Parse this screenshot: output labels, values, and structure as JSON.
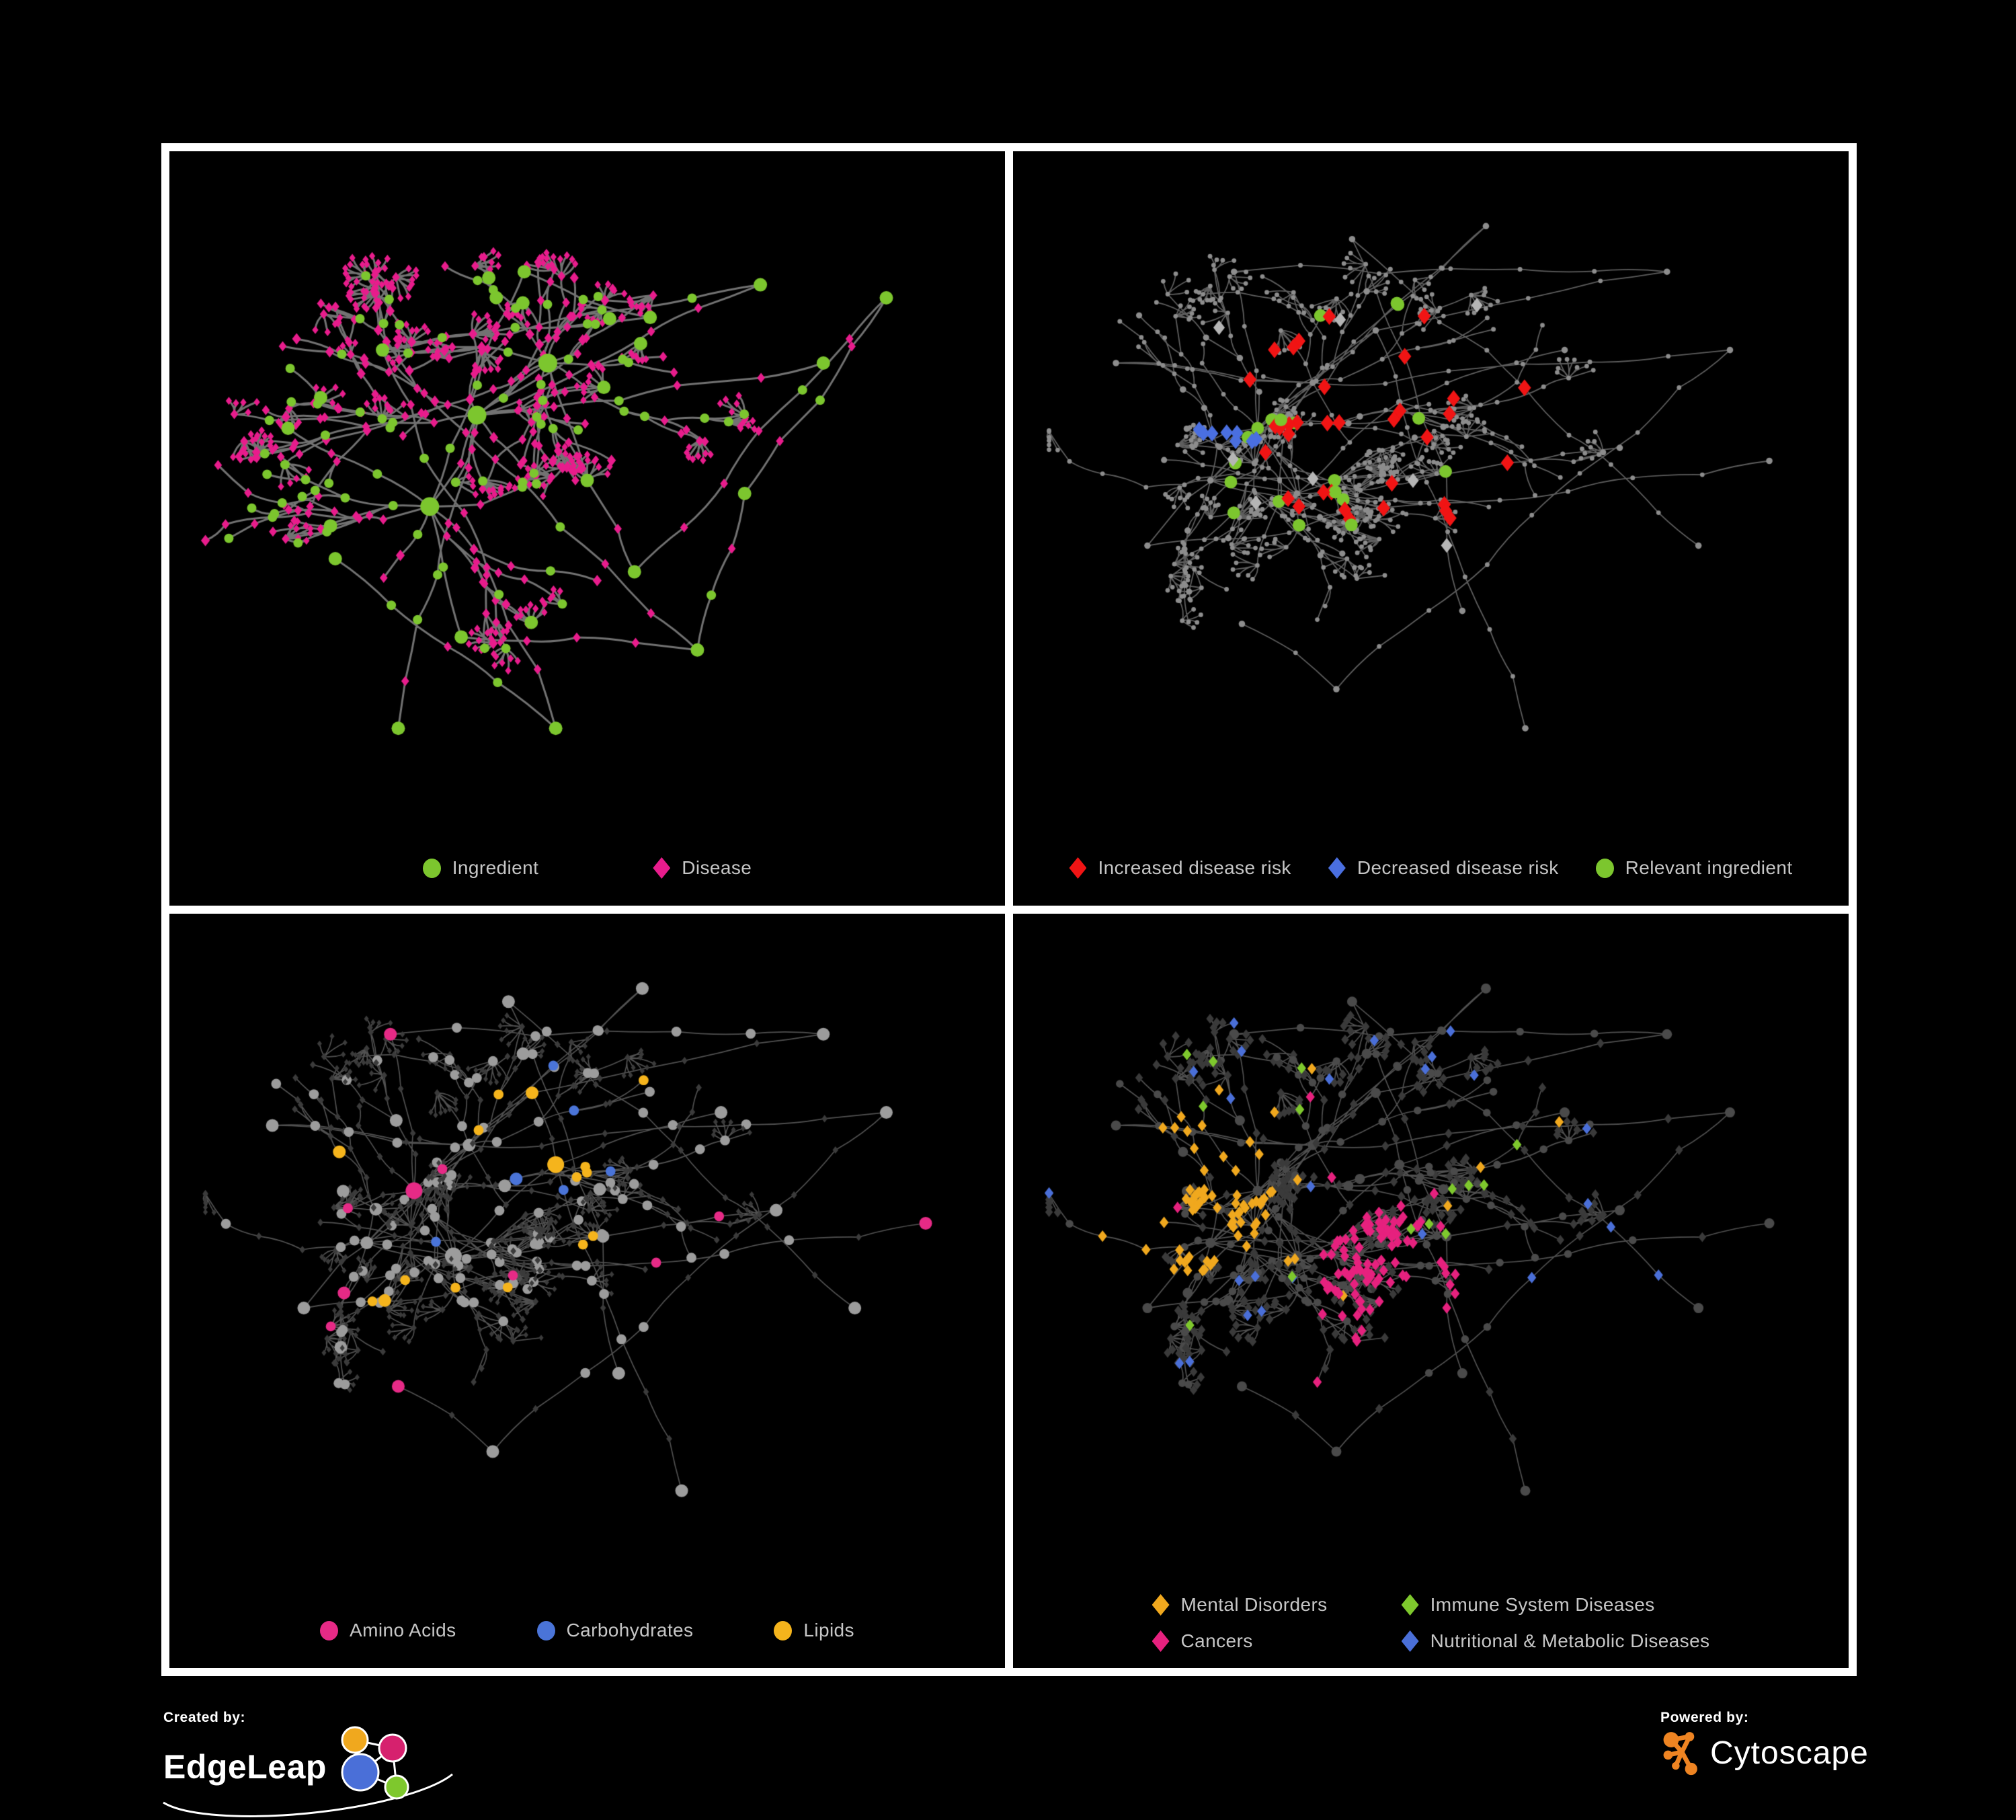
{
  "figure": {
    "background": "#000000",
    "frame_color": "#ffffff"
  },
  "panels": [
    {
      "name": "ingredient-disease-network",
      "legend": [
        {
          "label": "Ingredient",
          "shape": "circle",
          "color": "#7cc62e"
        },
        {
          "label": "Disease",
          "shape": "diamond",
          "color": "#e81c8c"
        }
      ],
      "colors": {
        "edge": "#7c7c7c"
      }
    },
    {
      "name": "disease-risk-network",
      "legend": [
        {
          "label": "Increased disease risk",
          "shape": "diamond",
          "color": "#f11414"
        },
        {
          "label": "Decreased disease risk",
          "shape": "diamond",
          "color": "#4a6fe0"
        },
        {
          "label": "Relevant ingredient",
          "shape": "circle",
          "color": "#7cc62e"
        }
      ],
      "colors": {
        "edge": "#6e6e6e",
        "base": "#8d8d8d",
        "neutral_diamond": "#b5b5b5"
      }
    },
    {
      "name": "nutrient-class-network",
      "legend": [
        {
          "label": "Amino Acids",
          "shape": "circle",
          "color": "#e62a86"
        },
        {
          "label": "Carbohydrates",
          "shape": "circle",
          "color": "#4a74d8"
        },
        {
          "label": "Lipids",
          "shape": "circle",
          "color": "#f5b41c"
        }
      ],
      "colors": {
        "edge": "#656565",
        "base_circle": "#9c9c9c",
        "base_diamond": "#3b3b3b"
      }
    },
    {
      "name": "disease-class-network",
      "legend": [
        {
          "label": "Mental Disorders",
          "shape": "diamond",
          "color": "#f0a81e"
        },
        {
          "label": "Immune System Diseases",
          "shape": "diamond",
          "color": "#7ec82d"
        },
        {
          "label": "Cancers",
          "shape": "diamond",
          "color": "#e6217e"
        },
        {
          "label": "Nutritional & Metabolic Diseases",
          "shape": "diamond",
          "color": "#4a6fd8"
        }
      ],
      "colors": {
        "edge": "#5e5e5e",
        "base_circle": "#4a4a4a",
        "base_diamond": "#3a3a3a"
      }
    }
  ],
  "branding": {
    "created_by": "Created by:",
    "brand_name": "EdgeLeap",
    "powered_by": "Powered by:",
    "engine_name": "Cytoscape",
    "cytoscape_color": "#ee8422",
    "edgeleap_nodes": {
      "hub": "#4a6fd8",
      "top": "#f0a81e",
      "right": "#d6216e",
      "bottom": "#7ec82d"
    }
  },
  "legend_text_color": "#c6c6c6"
}
